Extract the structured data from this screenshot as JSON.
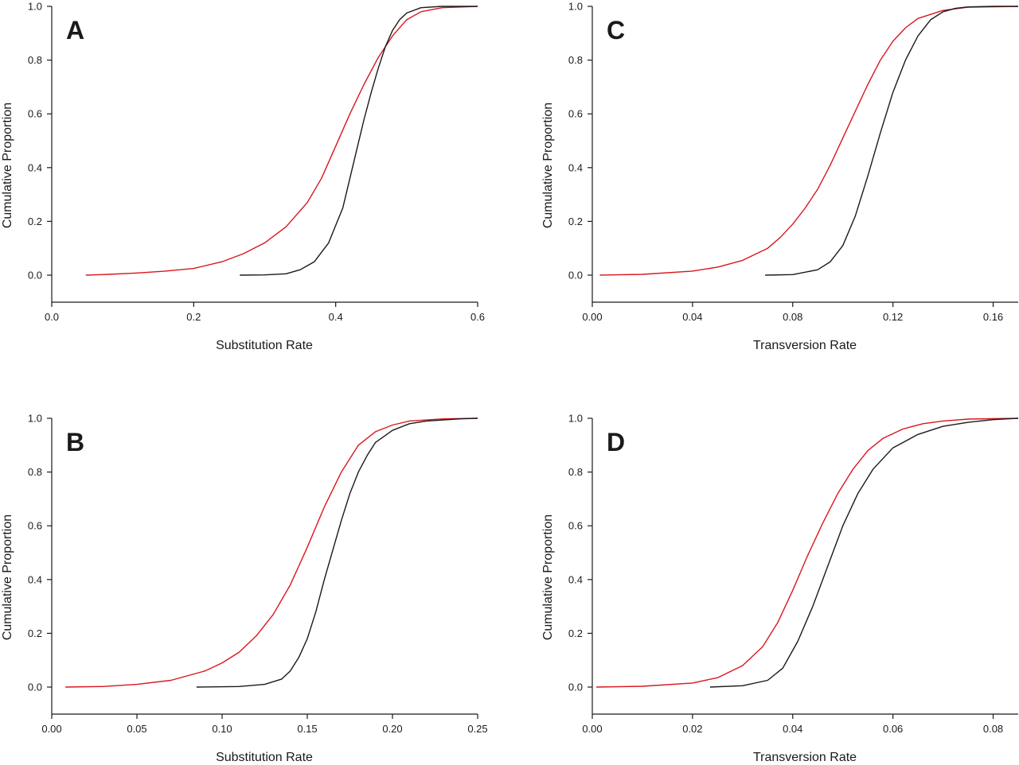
{
  "colors": {
    "red": "#d9171e",
    "black": "#1a1a1a"
  },
  "chart_data": [
    {
      "panel": "A",
      "type": "line",
      "xlabel": "Substitution Rate",
      "ylabel": "Cumulative Proportion",
      "xlim": [
        0,
        0.6
      ],
      "ylim": [
        -0.1,
        1.0
      ],
      "xticks": [
        0.0,
        0.2,
        0.4,
        0.6
      ],
      "xtick_labels": [
        "0.0",
        "0.2",
        "0.4",
        "0.6"
      ],
      "yticks": [
        0.0,
        0.2,
        0.4,
        0.6,
        0.8,
        1.0
      ],
      "ytick_labels": [
        "0.0",
        "0.2",
        "0.4",
        "0.6",
        "0.8",
        "1.0"
      ],
      "grid": false,
      "series": [
        {
          "color": "#d9171e",
          "x": [
            0.048,
            0.08,
            0.12,
            0.16,
            0.2,
            0.24,
            0.27,
            0.3,
            0.33,
            0.36,
            0.38,
            0.4,
            0.42,
            0.44,
            0.46,
            0.48,
            0.5,
            0.52,
            0.55,
            0.6
          ],
          "y": [
            0.0,
            0.003,
            0.008,
            0.015,
            0.025,
            0.05,
            0.08,
            0.12,
            0.18,
            0.27,
            0.36,
            0.48,
            0.6,
            0.71,
            0.81,
            0.89,
            0.95,
            0.98,
            0.995,
            1.0
          ]
        },
        {
          "color": "#1a1a1a",
          "x": [
            0.265,
            0.3,
            0.33,
            0.35,
            0.37,
            0.39,
            0.41,
            0.42,
            0.43,
            0.44,
            0.45,
            0.46,
            0.47,
            0.48,
            0.49,
            0.5,
            0.52,
            0.55,
            0.6
          ],
          "y": [
            0.0,
            0.001,
            0.005,
            0.02,
            0.05,
            0.12,
            0.25,
            0.36,
            0.47,
            0.58,
            0.68,
            0.77,
            0.85,
            0.91,
            0.95,
            0.975,
            0.995,
            1.0,
            1.0
          ]
        }
      ]
    },
    {
      "panel": "B",
      "type": "line",
      "xlabel": "Substitution Rate",
      "ylabel": "Cumulative Proportion",
      "xlim": [
        0,
        0.25
      ],
      "ylim": [
        -0.1,
        1.0
      ],
      "xticks": [
        0.0,
        0.05,
        0.1,
        0.15,
        0.2,
        0.25
      ],
      "xtick_labels": [
        "0.00",
        "0.05",
        "0.10",
        "0.15",
        "0.20",
        "0.25"
      ],
      "yticks": [
        0.0,
        0.2,
        0.4,
        0.6,
        0.8,
        1.0
      ],
      "ytick_labels": [
        "0.0",
        "0.2",
        "0.4",
        "0.6",
        "0.8",
        "1.0"
      ],
      "grid": false,
      "series": [
        {
          "color": "#d9171e",
          "x": [
            0.008,
            0.03,
            0.05,
            0.07,
            0.09,
            0.1,
            0.11,
            0.12,
            0.13,
            0.14,
            0.15,
            0.16,
            0.17,
            0.18,
            0.19,
            0.2,
            0.21,
            0.23,
            0.25
          ],
          "y": [
            0.0,
            0.002,
            0.01,
            0.025,
            0.06,
            0.09,
            0.13,
            0.19,
            0.27,
            0.38,
            0.52,
            0.67,
            0.8,
            0.9,
            0.95,
            0.975,
            0.99,
            0.998,
            1.0
          ]
        },
        {
          "color": "#1a1a1a",
          "x": [
            0.085,
            0.11,
            0.125,
            0.135,
            0.14,
            0.145,
            0.15,
            0.155,
            0.16,
            0.165,
            0.17,
            0.175,
            0.18,
            0.185,
            0.19,
            0.2,
            0.21,
            0.22,
            0.24,
            0.25
          ],
          "y": [
            0.0,
            0.002,
            0.01,
            0.03,
            0.06,
            0.11,
            0.18,
            0.28,
            0.4,
            0.51,
            0.62,
            0.72,
            0.8,
            0.86,
            0.91,
            0.955,
            0.98,
            0.99,
            0.998,
            1.0
          ]
        }
      ]
    },
    {
      "panel": "C",
      "type": "line",
      "xlabel": "Transversion Rate",
      "ylabel": "Cumulative Proportion",
      "xlim": [
        0,
        0.17
      ],
      "ylim": [
        -0.1,
        1.0
      ],
      "xticks": [
        0.0,
        0.04,
        0.08,
        0.12,
        0.16
      ],
      "xtick_labels": [
        "0.00",
        "0.04",
        "0.08",
        "0.12",
        "0.16"
      ],
      "yticks": [
        0.0,
        0.2,
        0.4,
        0.6,
        0.8,
        1.0
      ],
      "ytick_labels": [
        "0.0",
        "0.2",
        "0.4",
        "0.6",
        "0.8",
        "1.0"
      ],
      "grid": false,
      "series": [
        {
          "color": "#d9171e",
          "x": [
            0.003,
            0.02,
            0.04,
            0.05,
            0.06,
            0.07,
            0.075,
            0.08,
            0.085,
            0.09,
            0.095,
            0.1,
            0.105,
            0.11,
            0.115,
            0.12,
            0.125,
            0.13,
            0.14,
            0.15,
            0.17
          ],
          "y": [
            0.0,
            0.003,
            0.015,
            0.03,
            0.055,
            0.1,
            0.14,
            0.19,
            0.25,
            0.32,
            0.41,
            0.51,
            0.61,
            0.71,
            0.8,
            0.87,
            0.92,
            0.955,
            0.985,
            0.997,
            1.0
          ]
        },
        {
          "color": "#1a1a1a",
          "x": [
            0.069,
            0.08,
            0.09,
            0.095,
            0.1,
            0.105,
            0.11,
            0.115,
            0.12,
            0.125,
            0.13,
            0.135,
            0.14,
            0.145,
            0.15,
            0.16,
            0.17
          ],
          "y": [
            0.0,
            0.002,
            0.02,
            0.05,
            0.11,
            0.22,
            0.37,
            0.53,
            0.68,
            0.8,
            0.89,
            0.95,
            0.98,
            0.993,
            0.998,
            1.0,
            1.0
          ]
        }
      ]
    },
    {
      "panel": "D",
      "type": "line",
      "xlabel": "Transversion Rate",
      "ylabel": "Cumulative Proportion",
      "xlim": [
        0,
        0.085
      ],
      "ylim": [
        -0.1,
        1.0
      ],
      "xticks": [
        0.0,
        0.02,
        0.04,
        0.06,
        0.08
      ],
      "xtick_labels": [
        "0.00",
        "0.02",
        "0.04",
        "0.06",
        "0.08"
      ],
      "yticks": [
        0.0,
        0.2,
        0.4,
        0.6,
        0.8,
        1.0
      ],
      "ytick_labels": [
        "0.0",
        "0.2",
        "0.4",
        "0.6",
        "0.8",
        "1.0"
      ],
      "grid": false,
      "series": [
        {
          "color": "#d9171e",
          "x": [
            0.0008,
            0.01,
            0.02,
            0.025,
            0.03,
            0.034,
            0.037,
            0.04,
            0.043,
            0.046,
            0.049,
            0.052,
            0.055,
            0.058,
            0.062,
            0.066,
            0.07,
            0.075,
            0.085
          ],
          "y": [
            0.0,
            0.003,
            0.015,
            0.035,
            0.08,
            0.15,
            0.24,
            0.36,
            0.49,
            0.61,
            0.72,
            0.81,
            0.88,
            0.925,
            0.96,
            0.98,
            0.99,
            0.997,
            1.0
          ]
        },
        {
          "color": "#1a1a1a",
          "x": [
            0.0235,
            0.03,
            0.035,
            0.038,
            0.041,
            0.044,
            0.047,
            0.05,
            0.053,
            0.056,
            0.06,
            0.065,
            0.07,
            0.075,
            0.08,
            0.085
          ],
          "y": [
            0.0,
            0.005,
            0.025,
            0.07,
            0.17,
            0.3,
            0.45,
            0.6,
            0.72,
            0.81,
            0.89,
            0.94,
            0.97,
            0.985,
            0.995,
            1.0
          ]
        }
      ]
    }
  ]
}
